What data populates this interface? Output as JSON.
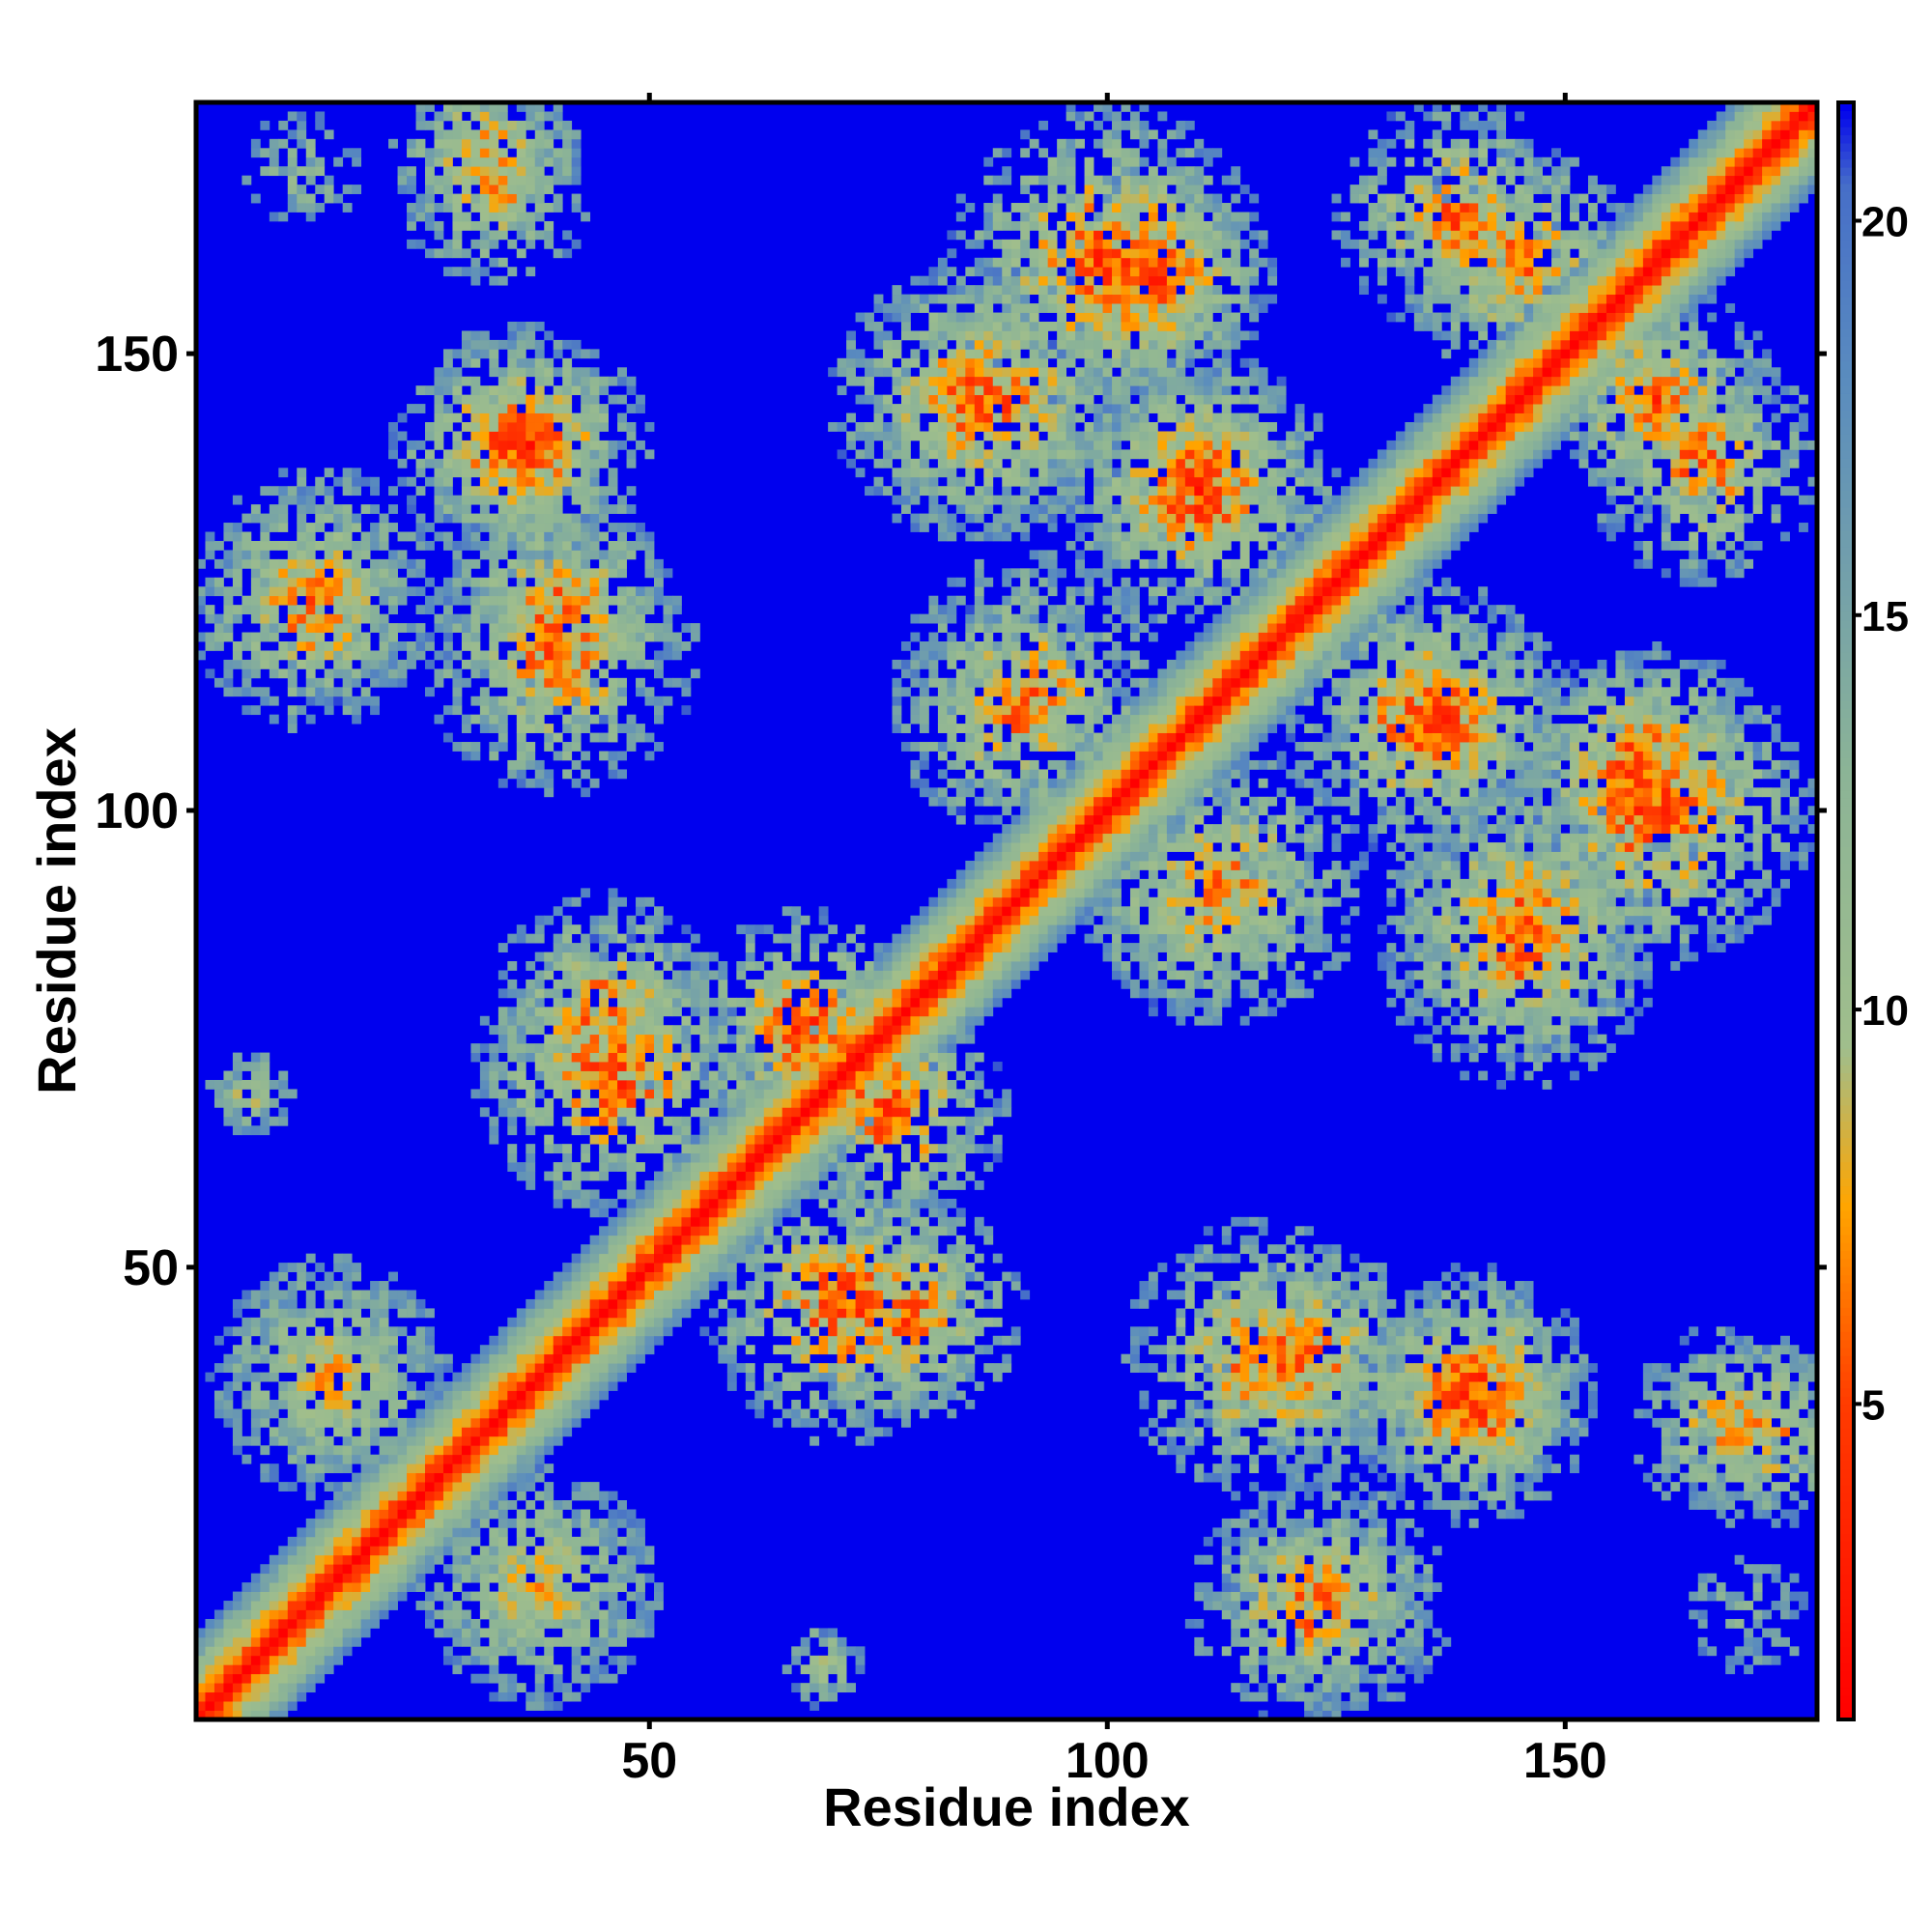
{
  "chart_data": {
    "type": "heatmap",
    "title": "",
    "xlabel": "Residue index",
    "ylabel": "Residue index",
    "xlim": [
      1,
      177
    ],
    "ylim": [
      1,
      177
    ],
    "x_ticks": [
      50,
      100,
      150
    ],
    "y_ticks": [
      50,
      100,
      150
    ],
    "colorbar": {
      "range": [
        1,
        21.5
      ],
      "ticks": [
        5,
        10,
        15,
        20
      ],
      "colors": {
        "low": "#ff0000",
        "mid_low": "#ffa500",
        "mid": "#9fbf8f",
        "mid_high": "#5f8fbf",
        "high": "#0000ee"
      }
    },
    "description_values": {
      "diagonal_distance": 0,
      "background_distance": 21.5
    },
    "contact_clusters": [
      {
        "x_center": 32,
        "y_center": 172,
        "spread": 5,
        "strength": 0.8
      },
      {
        "x_center": 37,
        "y_center": 140,
        "spread": 6,
        "strength": 1.0
      },
      {
        "x_center": 40,
        "y_center": 122,
        "spread": 6,
        "strength": 0.9
      },
      {
        "x_center": 14,
        "y_center": 125,
        "spread": 6,
        "strength": 0.7
      },
      {
        "x_center": 45,
        "y_center": 78,
        "spread": 6,
        "strength": 0.9
      },
      {
        "x_center": 67,
        "y_center": 76,
        "spread": 6,
        "strength": 1.0
      },
      {
        "x_center": 71,
        "y_center": 46,
        "spread": 7,
        "strength": 1.0
      },
      {
        "x_center": 15,
        "y_center": 38,
        "spread": 6,
        "strength": 0.7
      },
      {
        "x_center": 38,
        "y_center": 15,
        "spread": 6,
        "strength": 0.7
      },
      {
        "x_center": 7,
        "y_center": 69,
        "spread": 2,
        "strength": 0.6
      },
      {
        "x_center": 69,
        "y_center": 6,
        "spread": 2,
        "strength": 0.6
      },
      {
        "x_center": 100,
        "y_center": 160,
        "spread": 8,
        "strength": 1.0
      },
      {
        "x_center": 88,
        "y_center": 145,
        "spread": 7,
        "strength": 0.9
      },
      {
        "x_center": 110,
        "y_center": 137,
        "spread": 6,
        "strength": 0.9
      },
      {
        "x_center": 145,
        "y_center": 160,
        "spread": 6,
        "strength": 0.9
      },
      {
        "x_center": 165,
        "y_center": 138,
        "spread": 6,
        "strength": 0.9
      },
      {
        "x_center": 92,
        "y_center": 113,
        "spread": 7,
        "strength": 0.8
      },
      {
        "x_center": 135,
        "y_center": 110,
        "spread": 7,
        "strength": 1.0
      },
      {
        "x_center": 158,
        "y_center": 105,
        "spread": 6,
        "strength": 1.0
      },
      {
        "x_center": 145,
        "y_center": 85,
        "spread": 7,
        "strength": 0.9
      },
      {
        "x_center": 110,
        "y_center": 90,
        "spread": 6,
        "strength": 0.8
      },
      {
        "x_center": 117,
        "y_center": 40,
        "spread": 7,
        "strength": 0.9
      },
      {
        "x_center": 140,
        "y_center": 35,
        "spread": 6,
        "strength": 1.0
      },
      {
        "x_center": 122,
        "y_center": 13,
        "spread": 6,
        "strength": 0.9
      },
      {
        "x_center": 168,
        "y_center": 33,
        "spread": 5,
        "strength": 0.8
      },
      {
        "x_center": 170,
        "y_center": 12,
        "spread": 3,
        "strength": 0.4
      }
    ]
  }
}
